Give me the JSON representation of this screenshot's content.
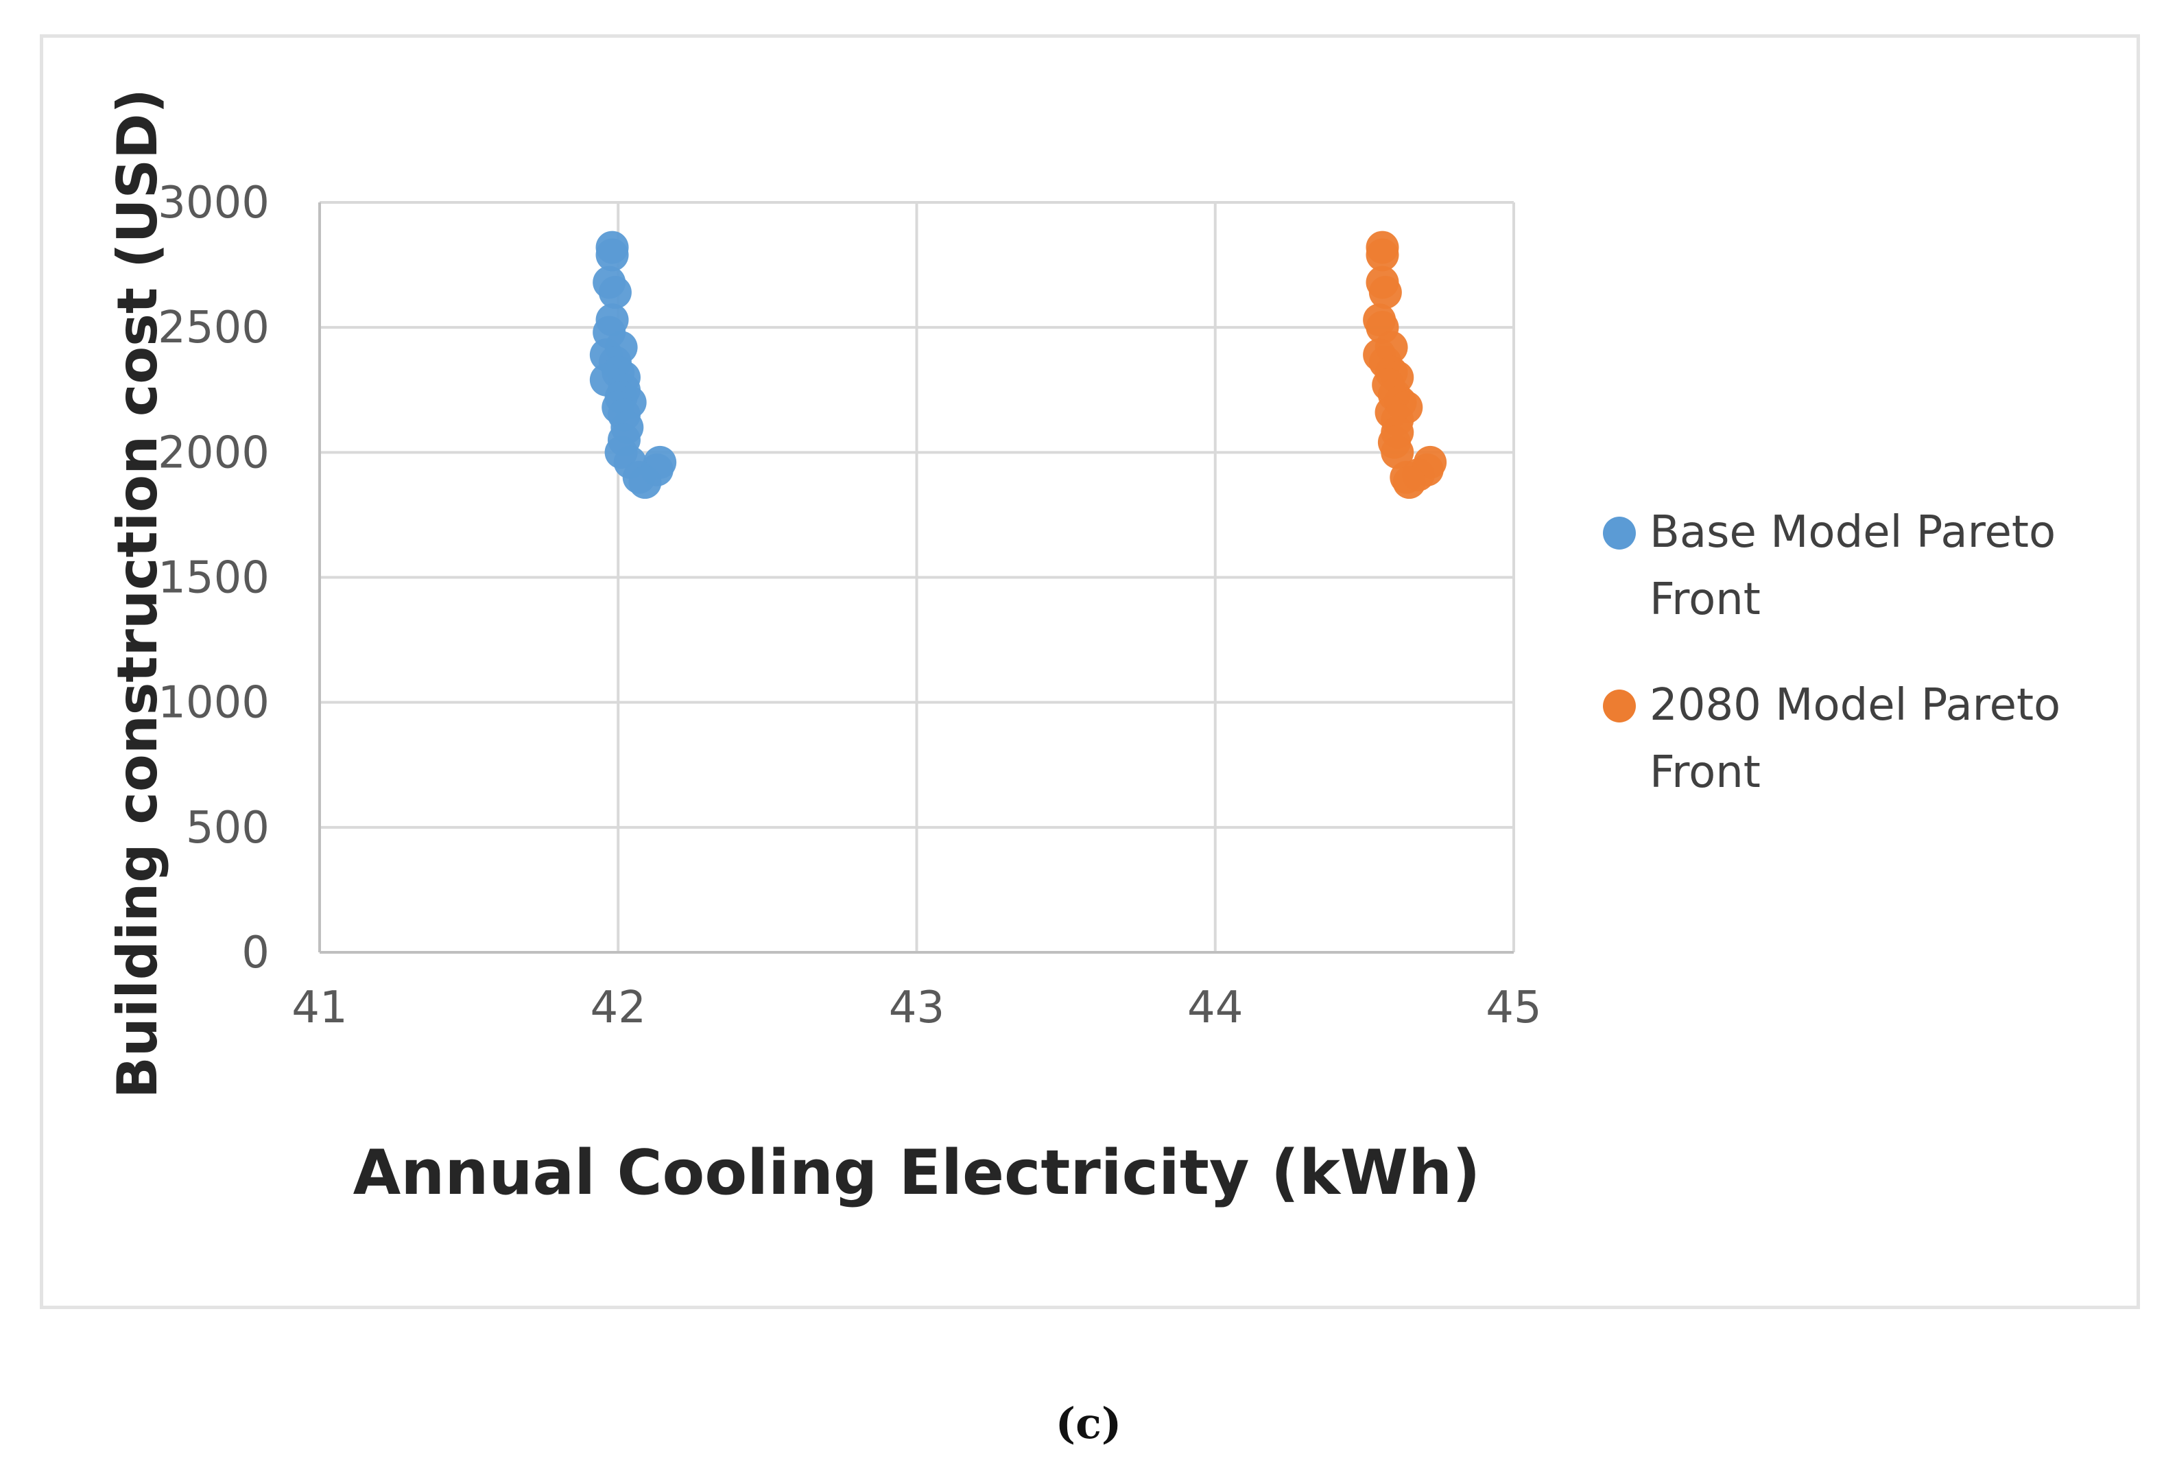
{
  "chart_data": {
    "type": "scatter",
    "title": "",
    "xlabel": "Annual Cooling Electricity (kWh)",
    "ylabel": "Building construction cost (USD)",
    "xlim": [
      41,
      45
    ],
    "ylim": [
      0,
      3000
    ],
    "x_ticks": [
      "41",
      "42",
      "43",
      "44",
      "45"
    ],
    "y_ticks": [
      "0",
      "500",
      "1000",
      "1500",
      "2000",
      "2500",
      "3000"
    ],
    "grid": true,
    "legend_position": "right",
    "series": [
      {
        "name": "Base Model Pareto Front",
        "color": "#5B9BD5",
        "points": [
          [
            41.98,
            2820
          ],
          [
            41.98,
            2790
          ],
          [
            41.97,
            2680
          ],
          [
            41.99,
            2640
          ],
          [
            41.98,
            2530
          ],
          [
            41.97,
            2480
          ],
          [
            42.01,
            2420
          ],
          [
            41.96,
            2390
          ],
          [
            41.99,
            2360
          ],
          [
            42.0,
            2320
          ],
          [
            42.02,
            2300
          ],
          [
            41.96,
            2290
          ],
          [
            42.02,
            2250
          ],
          [
            42.01,
            2220
          ],
          [
            42.04,
            2200
          ],
          [
            42.0,
            2180
          ],
          [
            42.02,
            2150
          ],
          [
            42.03,
            2100
          ],
          [
            42.02,
            2050
          ],
          [
            42.01,
            2000
          ],
          [
            42.04,
            1960
          ],
          [
            42.14,
            1960
          ],
          [
            42.13,
            1930
          ],
          [
            42.07,
            1900
          ],
          [
            42.09,
            1880
          ]
        ]
      },
      {
        "name": "2080 Model Pareto Front",
        "color": "#ED7D31",
        "points": [
          [
            44.56,
            2820
          ],
          [
            44.56,
            2790
          ],
          [
            44.56,
            2680
          ],
          [
            44.57,
            2640
          ],
          [
            44.55,
            2530
          ],
          [
            44.56,
            2500
          ],
          [
            44.59,
            2420
          ],
          [
            44.55,
            2390
          ],
          [
            44.57,
            2360
          ],
          [
            44.59,
            2320
          ],
          [
            44.61,
            2300
          ],
          [
            44.58,
            2270
          ],
          [
            44.6,
            2230
          ],
          [
            44.62,
            2200
          ],
          [
            44.64,
            2180
          ],
          [
            44.59,
            2160
          ],
          [
            44.61,
            2130
          ],
          [
            44.61,
            2080
          ],
          [
            44.6,
            2040
          ],
          [
            44.61,
            2000
          ],
          [
            44.72,
            1960
          ],
          [
            44.71,
            1930
          ],
          [
            44.68,
            1910
          ],
          [
            44.64,
            1900
          ],
          [
            44.65,
            1880
          ]
        ]
      }
    ],
    "legend_lines": [
      [
        "Base Model Pareto",
        "Front"
      ],
      [
        "2080 Model Pareto",
        "Front"
      ]
    ]
  },
  "caption": "(c)"
}
